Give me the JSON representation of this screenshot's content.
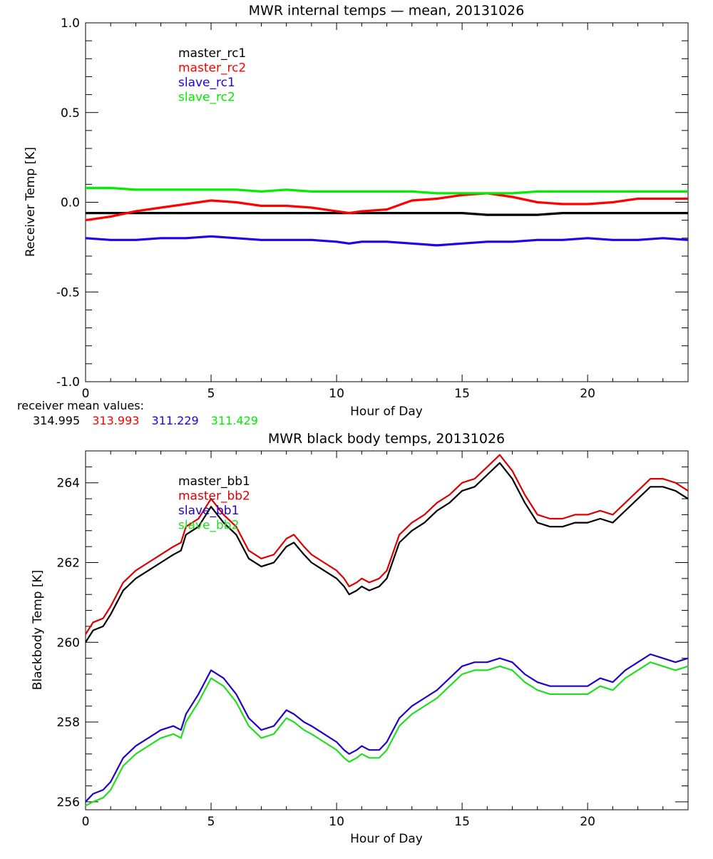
{
  "chart_data": [
    {
      "type": "line",
      "title": "MWR internal temps — mean, 20131026",
      "xlabel": "Hour of Day",
      "ylabel": "Receiver Temp [K]",
      "xlim": [
        0,
        24
      ],
      "ylim": [
        -1.0,
        1.0
      ],
      "xticks": [
        0,
        5,
        10,
        15,
        20
      ],
      "xtick_labels": [
        "0",
        "5",
        "10",
        "15",
        "20"
      ],
      "yticks": [
        -1.0,
        -0.5,
        0.0,
        0.5,
        1.0
      ],
      "ytick_labels": [
        "-1.0",
        "-0.5",
        "0.0",
        "0.5",
        "1.0"
      ],
      "legend_position": "top-left",
      "x": [
        0,
        1,
        2,
        3,
        4,
        5,
        6,
        7,
        8,
        9,
        10,
        10.5,
        11,
        12,
        13,
        14,
        15,
        16,
        17,
        18,
        19,
        20,
        21,
        22,
        23,
        24
      ],
      "series": [
        {
          "name": "master_rc1",
          "color": "#000000",
          "values": [
            -0.06,
            -0.06,
            -0.06,
            -0.06,
            -0.06,
            -0.06,
            -0.06,
            -0.06,
            -0.06,
            -0.06,
            -0.06,
            -0.06,
            -0.06,
            -0.06,
            -0.06,
            -0.06,
            -0.06,
            -0.07,
            -0.07,
            -0.07,
            -0.06,
            -0.06,
            -0.06,
            -0.06,
            -0.06,
            -0.06
          ]
        },
        {
          "name": "master_rc2",
          "color": "#ff0000",
          "values": [
            -0.1,
            -0.08,
            -0.05,
            -0.03,
            -0.01,
            0.01,
            0.0,
            -0.02,
            -0.02,
            -0.03,
            -0.05,
            -0.06,
            -0.05,
            -0.04,
            0.01,
            0.02,
            0.04,
            0.05,
            0.03,
            0.0,
            -0.01,
            -0.01,
            0.0,
            0.02,
            0.02,
            0.02
          ]
        },
        {
          "name": "slave_rc1",
          "color": "#2200ee",
          "values": [
            -0.2,
            -0.21,
            -0.21,
            -0.2,
            -0.2,
            -0.19,
            -0.2,
            -0.21,
            -0.21,
            -0.21,
            -0.22,
            -0.23,
            -0.22,
            -0.22,
            -0.23,
            -0.24,
            -0.23,
            -0.22,
            -0.22,
            -0.21,
            -0.21,
            -0.2,
            -0.21,
            -0.21,
            -0.2,
            -0.21
          ]
        },
        {
          "name": "slave_rc2",
          "color": "#00ee00",
          "values": [
            0.08,
            0.08,
            0.07,
            0.07,
            0.07,
            0.07,
            0.07,
            0.06,
            0.07,
            0.06,
            0.06,
            0.06,
            0.06,
            0.06,
            0.06,
            0.05,
            0.05,
            0.05,
            0.05,
            0.06,
            0.06,
            0.06,
            0.06,
            0.06,
            0.06,
            0.06
          ]
        }
      ],
      "mean_label": "receiver mean values:",
      "mean_values": [
        "314.995",
        "313.993",
        "311.229",
        "311.429"
      ]
    },
    {
      "type": "line",
      "title": "MWR black body temps, 20131026",
      "xlabel": "Hour of Day",
      "ylabel": "Blackbody Temp [K]",
      "xlim": [
        0,
        24
      ],
      "ylim": [
        255.8,
        264.8
      ],
      "xticks": [
        0,
        5,
        10,
        15,
        20
      ],
      "xtick_labels": [
        "0",
        "5",
        "10",
        "15",
        "20"
      ],
      "yticks": [
        256,
        258,
        260,
        262,
        264
      ],
      "ytick_labels": [
        "256",
        "258",
        "260",
        "262",
        "264"
      ],
      "legend_position": "top-left",
      "x": [
        0,
        0.3,
        0.7,
        1,
        1.5,
        2,
        2.5,
        3,
        3.5,
        3.8,
        4,
        4.5,
        5,
        5.5,
        6,
        6.5,
        7,
        7.5,
        8,
        8.3,
        8.7,
        9,
        9.5,
        10,
        10.3,
        10.5,
        10.8,
        11,
        11.3,
        11.7,
        12,
        12.5,
        13,
        13.5,
        14,
        14.5,
        15,
        15.5,
        16,
        16.5,
        17,
        17.5,
        18,
        18.5,
        19,
        19.5,
        20,
        20.5,
        21,
        21.5,
        22,
        22.5,
        23,
        23.5,
        24
      ],
      "series": [
        {
          "name": "master_bb1",
          "color": "#000000",
          "values": [
            260.0,
            260.3,
            260.4,
            260.7,
            261.3,
            261.6,
            261.8,
            262.0,
            262.2,
            262.3,
            262.7,
            262.9,
            263.4,
            263.0,
            262.7,
            262.1,
            261.9,
            262.0,
            262.4,
            262.5,
            262.2,
            262.0,
            261.8,
            261.6,
            261.4,
            261.2,
            261.3,
            261.4,
            261.3,
            261.4,
            261.6,
            262.5,
            262.8,
            263.0,
            263.3,
            263.5,
            263.8,
            263.9,
            264.2,
            264.5,
            264.1,
            263.5,
            263.0,
            262.9,
            262.9,
            263.0,
            263.0,
            263.1,
            263.0,
            263.3,
            263.6,
            263.9,
            263.9,
            263.8,
            263.6
          ]
        },
        {
          "name": "master_bb2",
          "color": "#dd0000",
          "values": [
            260.2,
            260.5,
            260.6,
            260.9,
            261.5,
            261.8,
            262.0,
            262.2,
            262.4,
            262.5,
            262.9,
            263.1,
            263.6,
            263.2,
            262.9,
            262.3,
            262.1,
            262.2,
            262.6,
            262.7,
            262.4,
            262.2,
            262.0,
            261.8,
            261.6,
            261.4,
            261.5,
            261.6,
            261.5,
            261.6,
            261.8,
            262.7,
            263.0,
            263.2,
            263.5,
            263.7,
            264.0,
            264.1,
            264.4,
            264.7,
            264.3,
            263.7,
            263.2,
            263.1,
            263.1,
            263.2,
            263.2,
            263.3,
            263.2,
            263.5,
            263.8,
            264.1,
            264.1,
            264.0,
            263.8
          ]
        },
        {
          "name": "slave_bb1",
          "color": "#2200cc",
          "values": [
            256.0,
            256.2,
            256.3,
            256.5,
            257.1,
            257.4,
            257.6,
            257.8,
            257.9,
            257.8,
            258.2,
            258.7,
            259.3,
            259.1,
            258.7,
            258.1,
            257.8,
            257.9,
            258.3,
            258.2,
            258.0,
            257.9,
            257.7,
            257.5,
            257.3,
            257.2,
            257.3,
            257.4,
            257.3,
            257.3,
            257.5,
            258.1,
            258.4,
            258.6,
            258.8,
            259.1,
            259.4,
            259.5,
            259.5,
            259.6,
            259.5,
            259.2,
            259.0,
            258.9,
            258.9,
            258.9,
            258.9,
            259.1,
            259.0,
            259.3,
            259.5,
            259.7,
            259.6,
            259.5,
            259.6
          ]
        },
        {
          "name": "slave_bb2",
          "color": "#22dd22",
          "values": [
            255.9,
            256.0,
            256.1,
            256.3,
            256.9,
            257.2,
            257.4,
            257.6,
            257.7,
            257.6,
            258.0,
            258.5,
            259.1,
            258.9,
            258.5,
            257.9,
            257.6,
            257.7,
            258.1,
            258.0,
            257.8,
            257.7,
            257.5,
            257.3,
            257.1,
            257.0,
            257.1,
            257.2,
            257.1,
            257.1,
            257.3,
            257.9,
            258.2,
            258.4,
            258.6,
            258.9,
            259.2,
            259.3,
            259.3,
            259.4,
            259.3,
            259.0,
            258.8,
            258.7,
            258.7,
            258.7,
            258.7,
            258.9,
            258.8,
            259.1,
            259.3,
            259.5,
            259.4,
            259.3,
            259.4
          ]
        }
      ]
    }
  ]
}
